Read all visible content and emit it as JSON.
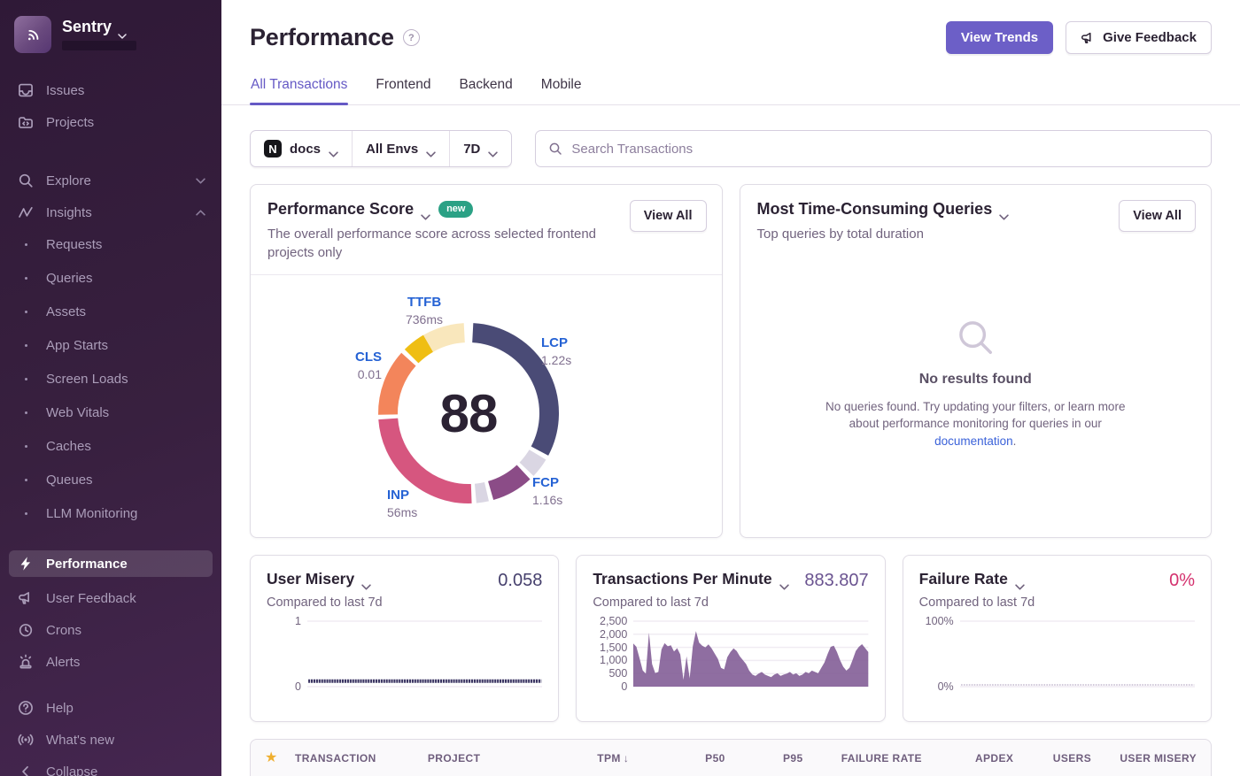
{
  "sidebar": {
    "brand": "Sentry",
    "items_primary": [
      {
        "label": "Issues",
        "icon": "issues-icon"
      },
      {
        "label": "Projects",
        "icon": "projects-icon"
      }
    ],
    "items_explore": [
      {
        "label": "Explore",
        "icon": "search-icon",
        "chevron": "down"
      },
      {
        "label": "Insights",
        "icon": "insights-icon",
        "chevron": "up"
      }
    ],
    "insight_subitems": [
      "Requests",
      "Queries",
      "Assets",
      "App Starts",
      "Screen Loads",
      "Web Vitals",
      "Caches",
      "Queues",
      "LLM Monitoring"
    ],
    "items_tools": [
      {
        "label": "Performance",
        "icon": "lightning-icon",
        "active": true
      },
      {
        "label": "User Feedback",
        "icon": "megaphone-icon"
      },
      {
        "label": "Crons",
        "icon": "clock-icon"
      },
      {
        "label": "Alerts",
        "icon": "siren-icon"
      }
    ],
    "items_footer": [
      {
        "label": "Help",
        "icon": "help-icon"
      },
      {
        "label": "What's new",
        "icon": "broadcast-icon"
      }
    ],
    "collapse_label": "Collapse"
  },
  "header": {
    "title": "Performance",
    "help": "?",
    "view_trends_label": "View Trends",
    "give_feedback_label": "Give Feedback"
  },
  "tabs": {
    "items": [
      "All Transactions",
      "Frontend",
      "Backend",
      "Mobile"
    ],
    "active": "All Transactions"
  },
  "filter_bar": {
    "project": "docs",
    "project_avatar": "N",
    "environment": "All Envs",
    "date_range": "7D",
    "search_placeholder": "Search Transactions"
  },
  "score_card": {
    "title": "Performance Score",
    "badge": "new",
    "view_all_label": "View All",
    "description": "The overall performance score across selected frontend projects only",
    "score": "88"
  },
  "queries_card": {
    "title": "Most Time-Consuming Queries",
    "view_all_label": "View All",
    "subtitle": "Top queries by total duration",
    "empty_title": "No results found",
    "empty_body_1": "No queries found. Try updating your filters, or learn more about performance monitoring for queries in our ",
    "empty_link": "documentation",
    "empty_body_2": "."
  },
  "mini_cards": [
    {
      "key": "user_misery",
      "title": "User Misery",
      "subtitle": "Compared to last 7d",
      "value": "0.058",
      "value_color": "#46406d"
    },
    {
      "key": "transactions_per_minute",
      "title": "Transactions Per Minute",
      "subtitle": "Compared to last 7d",
      "value": "883.807",
      "value_color": "#6a5390"
    },
    {
      "key": "failure_rate",
      "title": "Failure Rate",
      "subtitle": "Compared to last 7d",
      "value": "0%",
      "value_color": "#d4316e"
    }
  ],
  "table_header": {
    "columns": [
      "TRANSACTION",
      "PROJECT",
      "TPM",
      "P50",
      "P95",
      "FAILURE RATE",
      "APDEX",
      "USERS",
      "USER MISERY"
    ],
    "numeric_columns": [
      "TPM",
      "P50",
      "P95",
      "FAILURE RATE",
      "APDEX",
      "USERS",
      "USER MISERY"
    ],
    "sorted_by": "TPM",
    "sort_direction": "desc"
  },
  "colors": {
    "accent_purple": "#6c5fc7",
    "metric_label_blue": "#2562d4",
    "failure_pink": "#d4316e",
    "tpm_area": "#7f5a94",
    "misery_line": "#3b3563",
    "badge_teal": "#2ba185"
  },
  "chart_data": {
    "performance_score_ring": {
      "type": "donut",
      "score": 88,
      "segments": [
        {
          "metric": "LCP",
          "value": "1.22s",
          "color": "#4A4B76",
          "start_deg": 3,
          "end_deg": 118
        },
        {
          "metric": "LCP remainder",
          "color": "#DAD6E3",
          "start_deg": 121,
          "end_deg": 134,
          "muted": true
        },
        {
          "metric": "FCP",
          "value": "1.16s",
          "color": "#8B4C87",
          "start_deg": 137,
          "end_deg": 164
        },
        {
          "metric": "FCP remainder",
          "color": "#DAD6E3",
          "start_deg": 167,
          "end_deg": 175,
          "muted": true
        },
        {
          "metric": "INP",
          "value": "56ms",
          "color": "#D6567F",
          "start_deg": 178,
          "end_deg": 266
        },
        {
          "metric": "CLS",
          "value": "0.01",
          "color": "#F3855B",
          "start_deg": 269,
          "end_deg": 312
        },
        {
          "metric": "TTFB",
          "value": "736ms",
          "color": "#EFBE13",
          "start_deg": 315,
          "end_deg": 330
        },
        {
          "metric": "TTFB remainder",
          "color": "#F9E7BC",
          "start_deg": 330,
          "end_deg": 357,
          "muted": true
        }
      ],
      "labels": [
        {
          "metric": "TTFB",
          "value": "736ms",
          "pos": "top"
        },
        {
          "metric": "LCP",
          "value": "1.22s",
          "pos": "right"
        },
        {
          "metric": "CLS",
          "value": "0.01",
          "pos": "left"
        },
        {
          "metric": "INP",
          "value": "56ms",
          "pos": "bottom-left"
        },
        {
          "metric": "FCP",
          "value": "1.16s",
          "pos": "bottom-right"
        }
      ]
    },
    "user_misery": {
      "type": "line",
      "ylim": [
        0,
        1
      ],
      "yticks": [
        "1",
        "0"
      ],
      "flat_value": 0.058,
      "line_color": "#3b3563",
      "dashed": true
    },
    "transactions_per_minute": {
      "type": "area",
      "ylim": [
        0,
        2500
      ],
      "yticks": [
        "2,500",
        "2,000",
        "1,500",
        "1,000",
        "500",
        "0"
      ],
      "area_color": "#7f5a94",
      "values": [
        1650,
        1520,
        1080,
        620,
        500,
        2060,
        860,
        520,
        560,
        1420,
        1660,
        1540,
        1580,
        1340,
        1470,
        1230,
        260,
        1160,
        320,
        1540,
        2120,
        1680,
        1560,
        1500,
        1610,
        1460,
        1260,
        1060,
        720,
        660,
        1120,
        1320,
        1460,
        1360,
        1160,
        1010,
        860,
        610,
        460,
        410,
        500,
        560,
        460,
        410,
        360,
        460,
        510,
        410,
        460,
        500,
        560,
        460,
        510,
        410,
        460,
        560,
        510,
        610,
        560,
        510,
        720,
        920,
        1240,
        1520,
        1560,
        1320,
        1010,
        760,
        610,
        720,
        1020,
        1360,
        1520,
        1620,
        1470,
        1320
      ]
    },
    "failure_rate": {
      "type": "line",
      "ylim": [
        0,
        100
      ],
      "yticks": [
        "100%",
        "0%"
      ],
      "flat_value": 0,
      "line_color": "#d3cbdb",
      "dashed": true
    }
  }
}
